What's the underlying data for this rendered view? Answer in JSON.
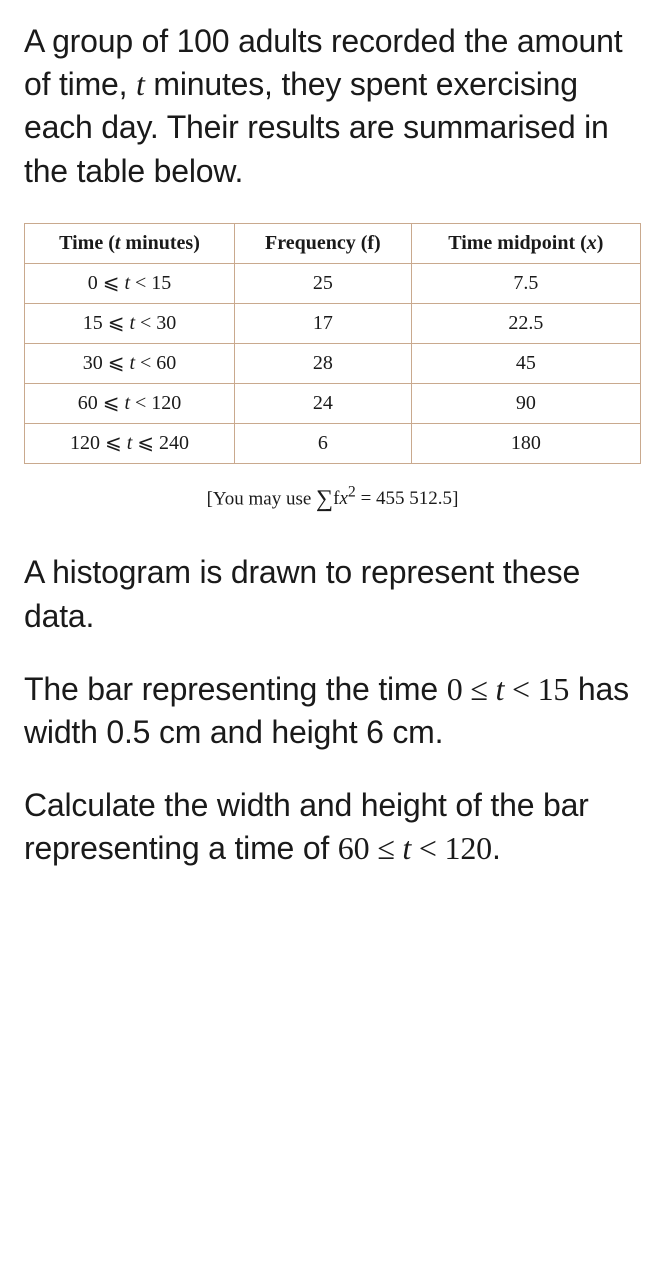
{
  "intro": {
    "pre": "A group of 100 adults recorded the amount of time, ",
    "var": "t",
    "post": " minutes, they spent exercising each day. Their results are summarised in the table below."
  },
  "table": {
    "headers": {
      "time_pre": "Time (",
      "time_var": "t",
      "time_post": " minutes)",
      "freq": "Frequency (f)",
      "mid_pre": "Time midpoint (",
      "mid_var": "x",
      "mid_post": ")"
    },
    "rows": [
      {
        "range_html": "0 ⩽ <i>t</i> < 15",
        "f": "25",
        "x": "7.5"
      },
      {
        "range_html": "15 ⩽ <i>t</i> < 30",
        "f": "17",
        "x": "22.5"
      },
      {
        "range_html": "30 ⩽ <i>t</i> < 60",
        "f": "28",
        "x": "45"
      },
      {
        "range_html": "60 ⩽ <i>t</i> < 120",
        "f": "24",
        "x": "90"
      },
      {
        "range_html": "120 ⩽ <i>t</i> ⩽ 240",
        "f": "6",
        "x": "180"
      }
    ]
  },
  "hint": {
    "pre": "[You may use  ",
    "expr": "∑fx² = 455 512.5",
    "post": "]"
  },
  "para2": "A histogram is drawn to represent these data.",
  "para3": {
    "pre": "The bar representing the time ",
    "range": "0 ≤ t < 15",
    "post": " has width 0.5 cm and height 6 cm."
  },
  "para4": {
    "pre": "Calculate the width and height of the bar representing a time of ",
    "range": "60 ≤ t < 120",
    "post": "."
  }
}
